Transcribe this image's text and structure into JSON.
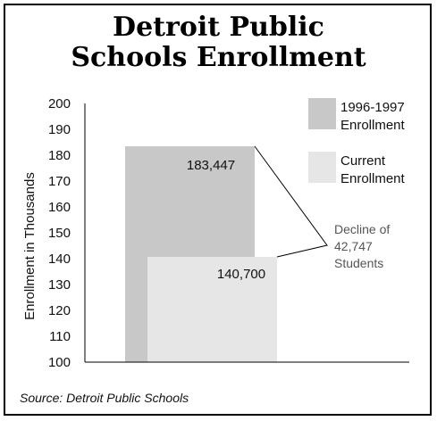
{
  "chart_data": {
    "type": "bar",
    "title": "Detroit Public\nSchools Enrollment",
    "ylabel": "Enrollment in Thousands",
    "xlabel": "",
    "ylim": [
      100,
      200
    ],
    "yticks": [
      "100",
      "110",
      "120",
      "130",
      "140",
      "150",
      "160",
      "170",
      "180",
      "190",
      "200"
    ],
    "grid": false,
    "legend_position": "right",
    "series": [
      {
        "name": "1996-1997 Enrollment",
        "legend_lines": [
          "1996-1997",
          "Enrollment"
        ],
        "value": 183.447,
        "label": "183,447",
        "color": "#c8c8c8"
      },
      {
        "name": "Current Enrollment",
        "legend_lines": [
          "Current",
          "Enrollment"
        ],
        "value": 140.7,
        "label": "140,700",
        "color": "#e6e6e6"
      }
    ],
    "annotation": {
      "lines": [
        "Decline of",
        "42,747",
        "Students"
      ],
      "color": "#555555"
    }
  },
  "source": "Source: Detroit Public Schools"
}
